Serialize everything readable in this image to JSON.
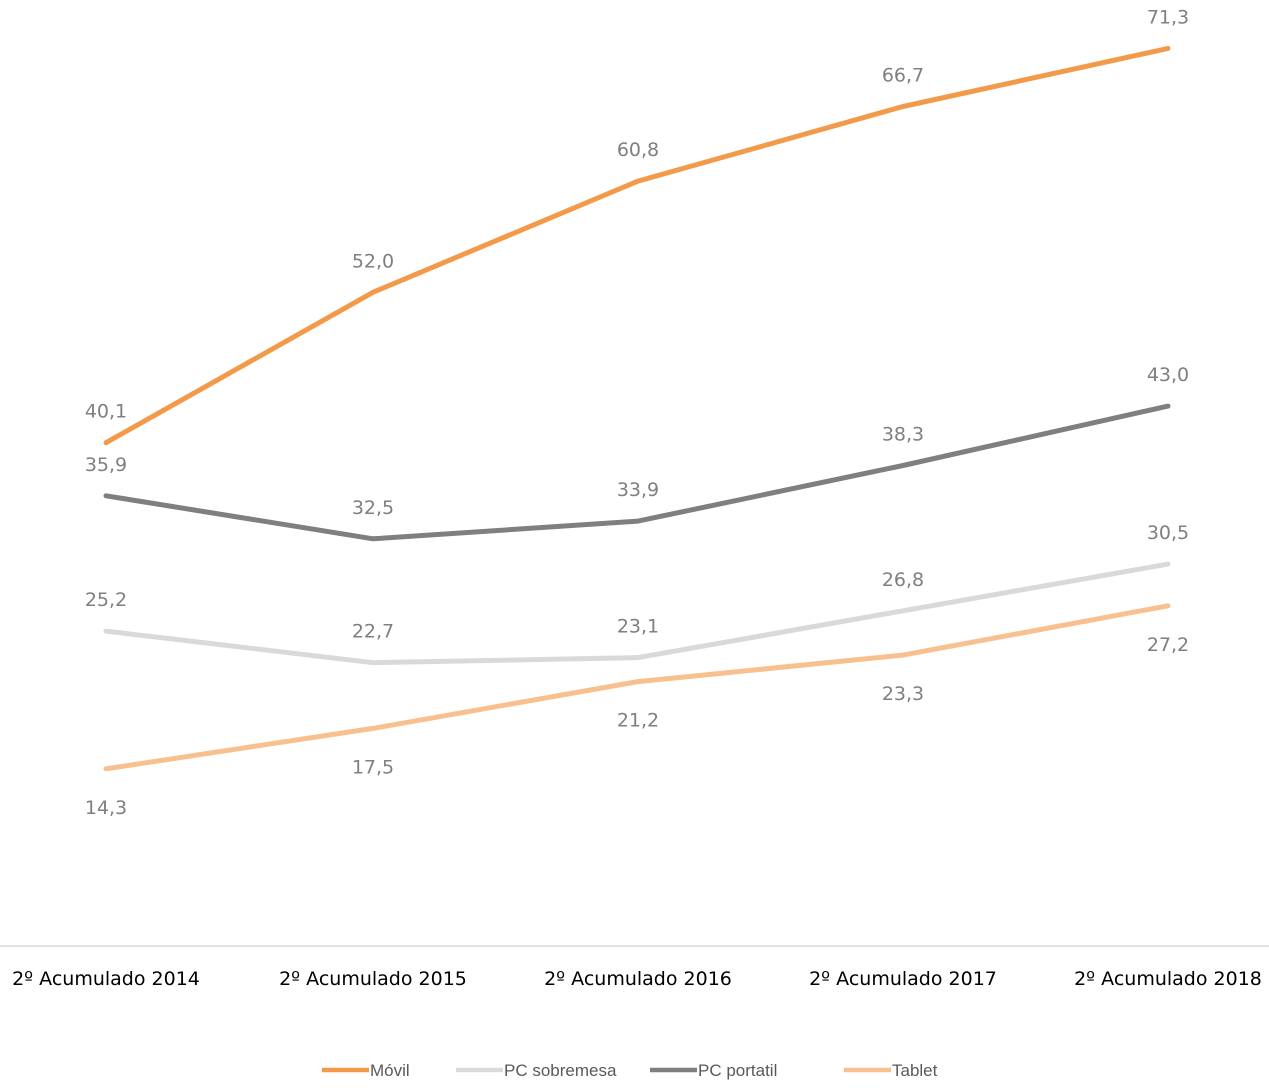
{
  "chart_data": {
    "type": "line",
    "categories": [
      "2º Acumulado 2014",
      "2º Acumulado 2015",
      "2º Acumulado 2016",
      "2º Acumulado 2017",
      "2º Acumulado 2018"
    ],
    "series": [
      {
        "name": "Móvil",
        "color": "#f39a4a",
        "values": [
          40.1,
          52.0,
          60.8,
          66.7,
          71.3
        ],
        "labels": [
          "40,1",
          "52,0",
          "60,8",
          "66,7",
          "71,3"
        ],
        "label_position": "above"
      },
      {
        "name": "PC sobremesa",
        "color": "#d9d9d9",
        "values": [
          25.2,
          22.7,
          23.1,
          26.8,
          30.5
        ],
        "labels": [
          "25,2",
          "22,7",
          "23,1",
          "26,8",
          "30,5"
        ],
        "label_position": "above"
      },
      {
        "name": "PC portatil",
        "color": "#7f7f7f",
        "values": [
          35.9,
          32.5,
          33.9,
          38.3,
          43.0
        ],
        "labels": [
          "35,9",
          "32,5",
          "33,9",
          "38,3",
          "43,0"
        ],
        "label_position": "above"
      },
      {
        "name": "Tablet",
        "color": "#f8c08f",
        "values": [
          14.3,
          17.5,
          21.2,
          23.3,
          27.2
        ],
        "labels": [
          "14,3",
          "17,5",
          "21,2",
          "23,3",
          "27,2"
        ],
        "label_position": "below"
      }
    ],
    "legend_placement": "bottom",
    "grid": false,
    "title": "",
    "xlabel": "",
    "ylabel": ""
  }
}
